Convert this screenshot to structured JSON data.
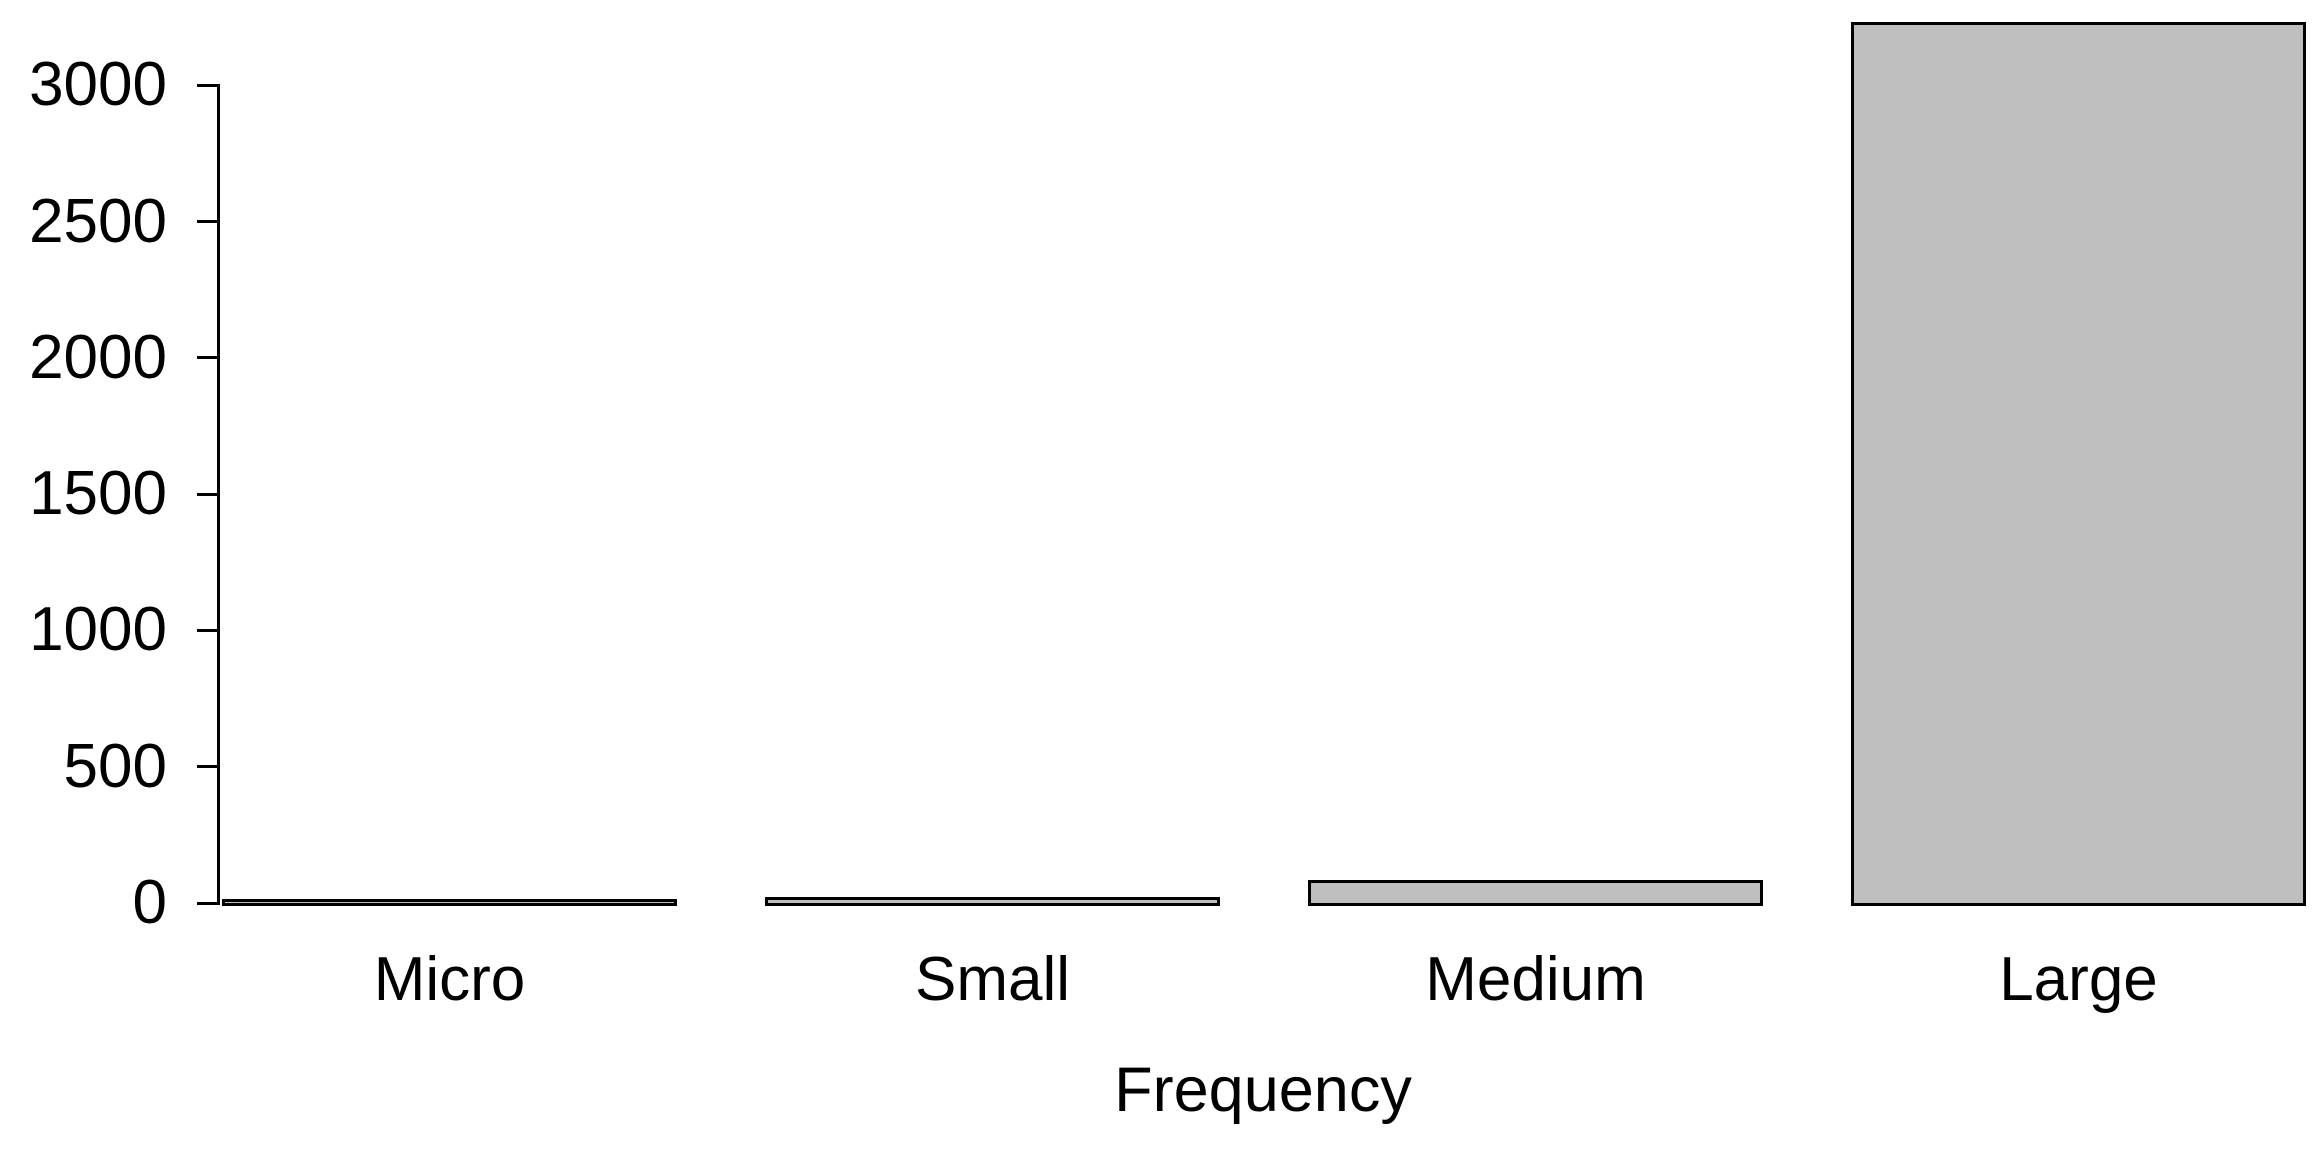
{
  "chart_data": {
    "type": "bar",
    "categories": [
      "Micro",
      "Small",
      "Medium",
      "Large"
    ],
    "values": [
      2,
      10,
      75,
      3220
    ],
    "title": "",
    "xlabel": "Frequency",
    "ylabel": "",
    "ylim": [
      0,
      3300
    ],
    "yticks": [
      0,
      500,
      1000,
      1500,
      2000,
      2500,
      3000
    ],
    "grid": false,
    "legend_position": "none",
    "colors": {
      "bar_fill": "#BEBEBE",
      "bar_border": "#000000",
      "axis": "#000000",
      "text": "#000000",
      "background": "#FFFFFF"
    }
  }
}
